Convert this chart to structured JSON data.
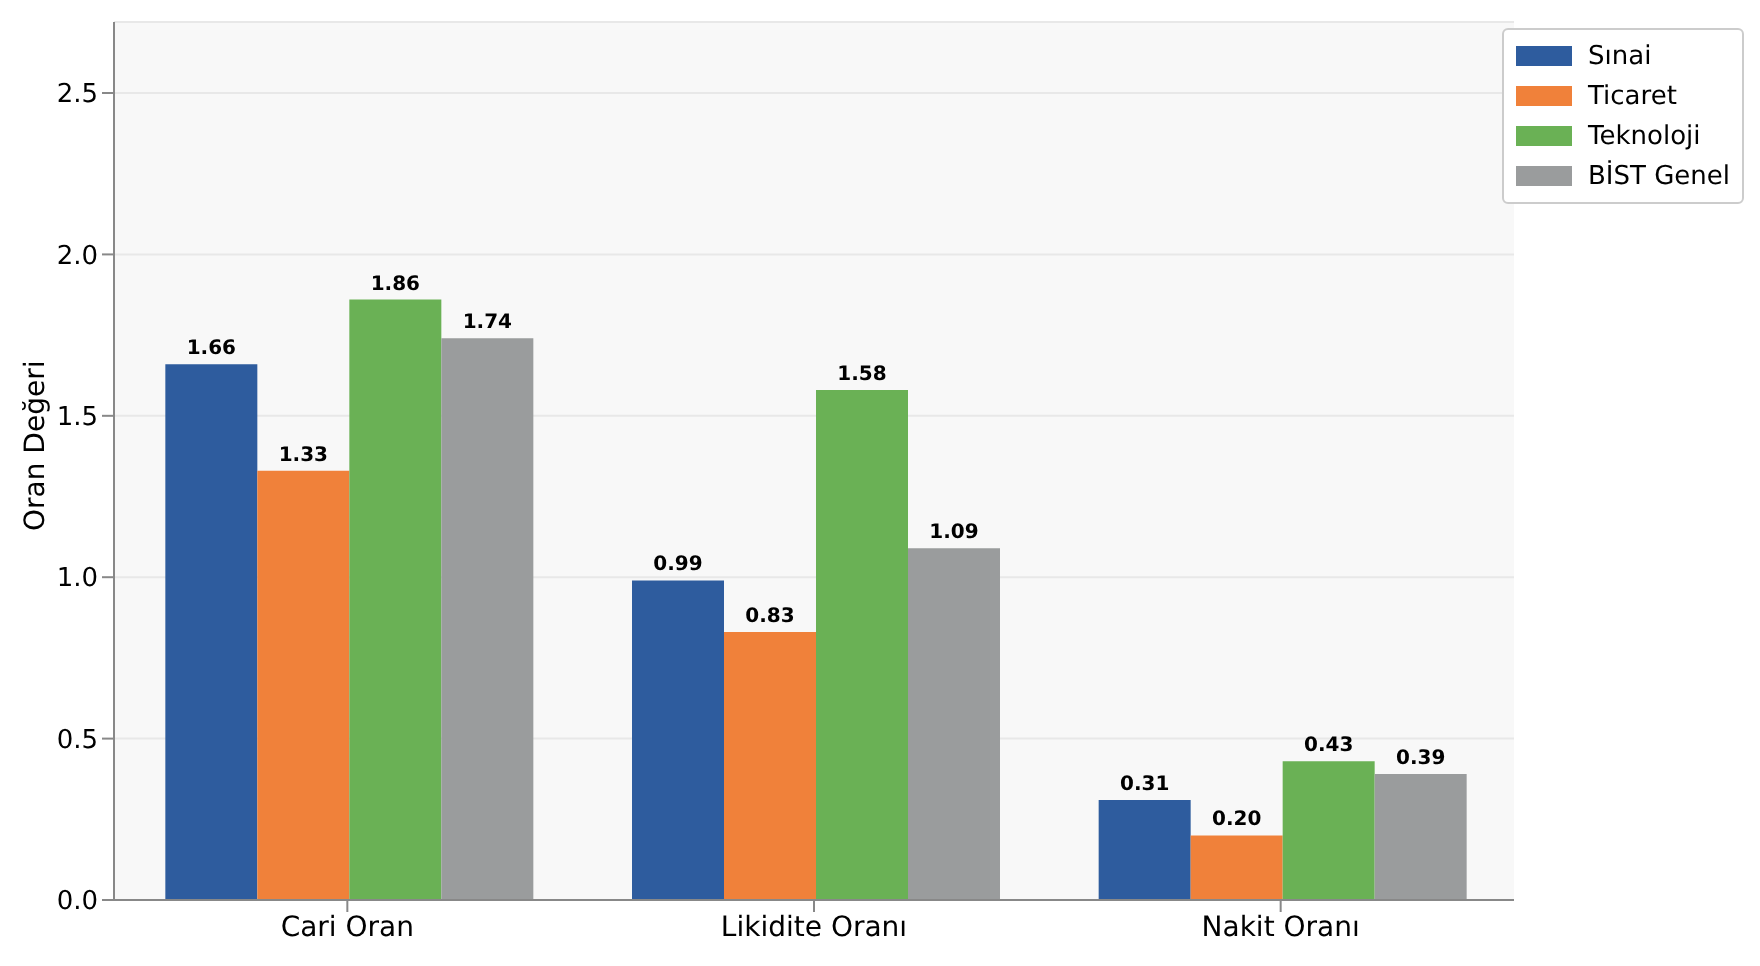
{
  "chart_data": {
    "type": "bar",
    "ylabel": "Oran Değeri",
    "categories": [
      "Cari Oran",
      "Likidite Oranı",
      "Nakit Oranı"
    ],
    "series": [
      {
        "name": "Sınai",
        "color": "#2e5c9e",
        "values": [
          1.66,
          0.99,
          0.31
        ],
        "value_labels": [
          "1.66",
          "0.99",
          "0.31"
        ]
      },
      {
        "name": "Ticaret",
        "color": "#f0813a",
        "values": [
          1.33,
          0.83,
          0.2
        ],
        "value_labels": [
          "1.33",
          "0.83",
          "0.20"
        ]
      },
      {
        "name": "Teknoloji",
        "color": "#6ab155",
        "values": [
          1.86,
          1.58,
          0.43
        ],
        "value_labels": [
          "1.86",
          "1.58",
          "0.43"
        ]
      },
      {
        "name": "BİST Genel",
        "color": "#9a9c9d",
        "values": [
          1.74,
          1.09,
          0.39
        ],
        "value_labels": [
          "1.74",
          "1.09",
          "0.39"
        ]
      }
    ],
    "ylim": [
      0,
      2.72
    ],
    "yticks": [
      {
        "value": 0,
        "label": "0.0"
      },
      {
        "value": 0.5,
        "label": "0.5"
      },
      {
        "value": 1,
        "label": "1.0"
      },
      {
        "value": 1.5,
        "label": "1.5"
      },
      {
        "value": 2,
        "label": "2.0"
      },
      {
        "value": 2.5,
        "label": "2.5"
      }
    ],
    "grid": "y",
    "legend": "top right"
  }
}
